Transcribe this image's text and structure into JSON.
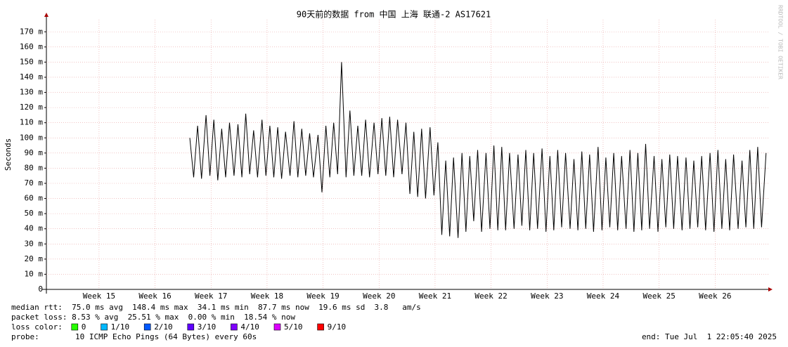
{
  "chart_data": {
    "type": "line",
    "title": "90天前的数据 from 中国 上海 联通-2 AS17621",
    "y_label": "Seconds",
    "watermark": "RRDTOOL / TOBI OETIKER",
    "x": [
      16.62,
      16.69,
      16.76,
      16.83,
      16.91,
      16.98,
      17.05,
      17.12,
      17.19,
      17.26,
      17.33,
      17.41,
      17.48,
      17.55,
      17.62,
      17.69,
      17.76,
      17.83,
      17.91,
      17.98,
      18.05,
      18.12,
      18.19,
      18.26,
      18.33,
      18.41,
      18.48,
      18.55,
      18.62,
      18.69,
      18.76,
      18.83,
      18.91,
      18.98,
      19.05,
      19.12,
      19.19,
      19.26,
      19.33,
      19.41,
      19.48,
      19.55,
      19.62,
      19.69,
      19.76,
      19.83,
      19.91,
      19.98,
      20.05,
      20.12,
      20.19,
      20.26,
      20.33,
      20.41,
      20.48,
      20.55,
      20.62,
      20.69,
      20.76,
      20.83,
      20.91,
      20.98,
      21.05,
      21.12,
      21.19,
      21.26,
      21.33,
      21.41,
      21.48,
      21.55,
      21.62,
      21.69,
      21.76,
      21.83,
      21.91,
      21.98,
      22.05,
      22.12,
      22.19,
      22.26,
      22.33,
      22.41,
      22.48,
      22.55,
      22.62,
      22.69,
      22.76,
      22.83,
      22.91,
      22.98,
      23.05,
      23.12,
      23.19,
      23.26,
      23.33,
      23.41,
      23.48,
      23.55,
      23.62,
      23.69,
      23.76,
      23.83,
      23.91,
      23.98,
      24.05,
      24.12,
      24.19,
      24.26,
      24.33,
      24.41,
      24.48,
      24.55,
      24.62,
      24.69,
      24.76,
      24.83,
      24.91,
      24.98,
      25.05,
      25.12,
      25.19,
      25.26,
      25.33,
      25.41,
      25.48,
      25.55,
      25.62,
      25.69,
      25.76,
      25.83,
      25.91,
      25.98,
      26.05,
      26.12,
      26.19,
      26.26,
      26.33,
      26.41,
      26.48,
      26.55,
      26.62,
      26.69,
      26.76,
      26.83,
      26.91
    ],
    "series": [
      {
        "name": "median rtt",
        "color": "#000000",
        "values": [
          100,
          74,
          108,
          73,
          115,
          75,
          112,
          72,
          106,
          74,
          110,
          75,
          109,
          74,
          116,
          76,
          105,
          74,
          112,
          75,
          108,
          74,
          107,
          73,
          104,
          75,
          111,
          74,
          106,
          75,
          103,
          74,
          102,
          64,
          108,
          74,
          110,
          76,
          150,
          74,
          118,
          75,
          108,
          75,
          112,
          74,
          110,
          76,
          113,
          75,
          114,
          74,
          112,
          76,
          110,
          63,
          104,
          61,
          106,
          60,
          107,
          62,
          97,
          36,
          85,
          35,
          87,
          34,
          90,
          38,
          88,
          45,
          92,
          38,
          90,
          40,
          95,
          39,
          94,
          39,
          90,
          40,
          89,
          42,
          92,
          39,
          90,
          40,
          93,
          38,
          88,
          39,
          92,
          41,
          90,
          40,
          86,
          39,
          91,
          40,
          89,
          38,
          94,
          39,
          87,
          41,
          90,
          39,
          88,
          40,
          92,
          38,
          90,
          39,
          96,
          40,
          88,
          38,
          86,
          41,
          89,
          40,
          88,
          39,
          87,
          40,
          85,
          41,
          88,
          39,
          90,
          38,
          92,
          40,
          86,
          39,
          89,
          40,
          85,
          41,
          92,
          40,
          94,
          41,
          90
        ]
      }
    ],
    "xlim": [
      14.06,
      26.95
    ],
    "xticks": [
      {
        "value": 15,
        "label": "Week 15"
      },
      {
        "value": 16,
        "label": "Week 16"
      },
      {
        "value": 17,
        "label": "Week 17"
      },
      {
        "value": 18,
        "label": "Week 18"
      },
      {
        "value": 19,
        "label": "Week 19"
      },
      {
        "value": 20,
        "label": "Week 20"
      },
      {
        "value": 21,
        "label": "Week 21"
      },
      {
        "value": 22,
        "label": "Week 22"
      },
      {
        "value": 23,
        "label": "Week 23"
      },
      {
        "value": 24,
        "label": "Week 24"
      },
      {
        "value": 25,
        "label": "Week 25"
      },
      {
        "value": 26,
        "label": "Week 26"
      }
    ],
    "ylim": [
      0,
      178
    ],
    "yticks": [
      0,
      {
        "value": 10,
        "label": "10 m"
      },
      {
        "value": 20,
        "label": "20 m"
      },
      {
        "value": 30,
        "label": "30 m"
      },
      {
        "value": 40,
        "label": "40 m"
      },
      {
        "value": 50,
        "label": "50 m"
      },
      {
        "value": 60,
        "label": "60 m"
      },
      {
        "value": 70,
        "label": "70 m"
      },
      {
        "value": 80,
        "label": "80 m"
      },
      {
        "value": 90,
        "label": "90 m"
      },
      {
        "value": 100,
        "label": "100 m"
      },
      {
        "value": 110,
        "label": "110 m"
      },
      {
        "value": 120,
        "label": "120 m"
      },
      {
        "value": 130,
        "label": "130 m"
      },
      {
        "value": 140,
        "label": "140 m"
      },
      {
        "value": 150,
        "label": "150 m"
      },
      {
        "value": 160,
        "label": "160 m"
      },
      {
        "value": 170,
        "label": "170 m"
      }
    ],
    "grid": true,
    "stats": [
      "median rtt:  75.0 ms avg  148.4 ms max  34.1 ms min  87.7 ms now  19.6 ms sd  3.8   am/s",
      "packet loss: 8.53 % avg  25.51 % max  0.00 % min  18.54 % now"
    ],
    "loss_legend": {
      "label": "loss color:",
      "items": [
        {
          "name": "0",
          "color": "#26ff00"
        },
        {
          "name": "1/10",
          "color": "#00b8ff"
        },
        {
          "name": "2/10",
          "color": "#0059ff"
        },
        {
          "name": "3/10",
          "color": "#5e00ff"
        },
        {
          "name": "4/10",
          "color": "#7e00ff"
        },
        {
          "name": "5/10",
          "color": "#dd00ff"
        },
        {
          "name": "9/10",
          "color": "#ff0000"
        }
      ]
    },
    "probe": {
      "label": "probe:",
      "text": "10 ICMP Echo Pings (64 Bytes) every 60s"
    },
    "end": "end: Tue Jul  1 22:05:40 2025"
  }
}
